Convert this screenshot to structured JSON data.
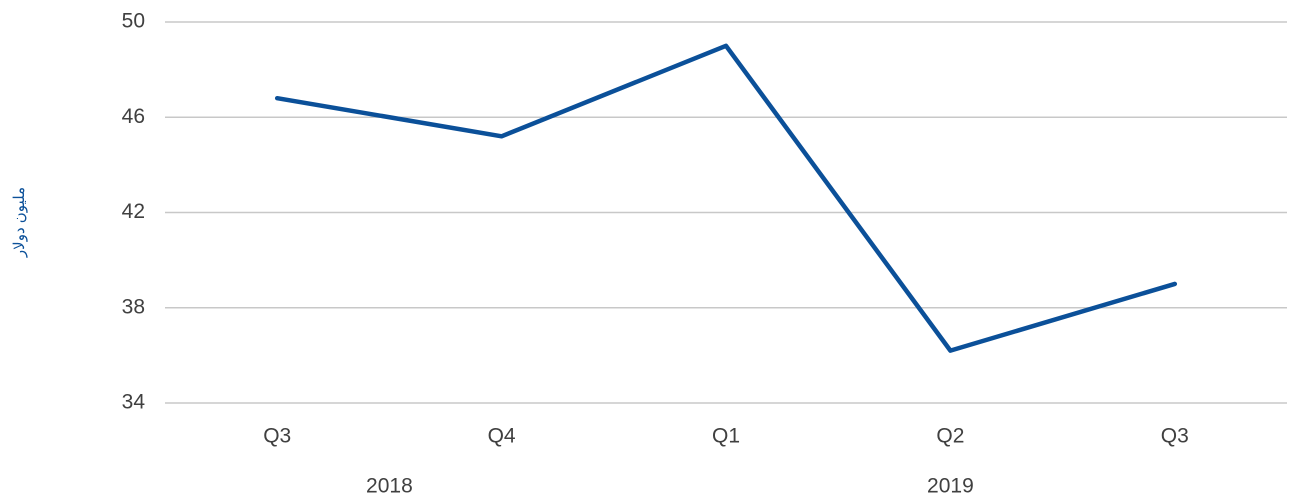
{
  "chart_data": {
    "type": "line",
    "y_label": "مليون دولار",
    "category_groups": [
      {
        "label": "2018",
        "categories": [
          "Q3",
          "Q4"
        ]
      },
      {
        "label": "2019",
        "categories": [
          "Q1",
          "Q2",
          "Q3"
        ]
      }
    ],
    "series": [
      {
        "color": "#0b5099",
        "values": [
          46.8,
          45.2,
          49.0,
          36.2,
          39.0
        ]
      }
    ],
    "ylim": [
      34,
      50
    ],
    "yticks": [
      34,
      38,
      42,
      46,
      50
    ],
    "grid": true
  }
}
